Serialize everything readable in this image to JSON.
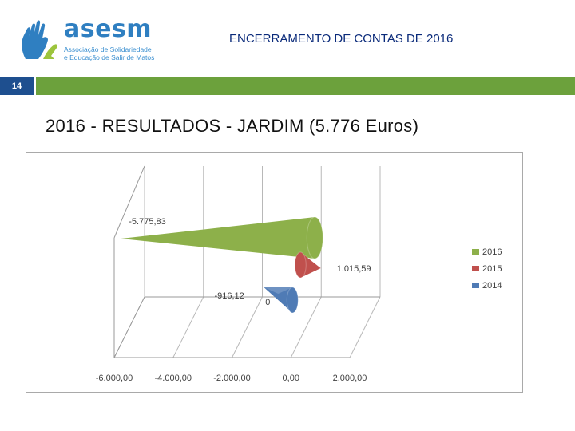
{
  "header": {
    "logo_word": "asesm",
    "logo_sub_line1": "Associação de Solidariedade",
    "logo_sub_line2": "e Educação de Salir de Matos",
    "title": "ENCERRAMENTO DE CONTAS DE 2016",
    "page_number": "14"
  },
  "colors": {
    "brand_blue": "#2f7fc1",
    "bar_blue": "#1e4f8f",
    "bar_green": "#6ca13c",
    "series_2016": "#8db04a",
    "series_2015": "#c0504d",
    "series_2014": "#4f7bb5"
  },
  "slide_title": "2016 - RESULTADOS - JARDIM (5.776 Euros)",
  "chart_data": {
    "type": "bar",
    "orientation": "horizontal",
    "style": "3d-cone",
    "x_ticks": [
      "-6.000,00",
      "-4.000,00",
      "-2.000,00",
      "0,00",
      "2.000,00"
    ],
    "xlim": [
      -6000,
      2000
    ],
    "grid": true,
    "legend_position": "right",
    "series": [
      {
        "name": "2016",
        "value": -5775.83,
        "label": "-5.775,83",
        "color": "#8db04a"
      },
      {
        "name": "2015",
        "value": 1015.59,
        "label": "1.015,59",
        "color": "#c0504d"
      },
      {
        "name": "2014",
        "value": -916.12,
        "label": "-916,12",
        "color": "#4f7bb5"
      }
    ],
    "extra_label": "0"
  }
}
